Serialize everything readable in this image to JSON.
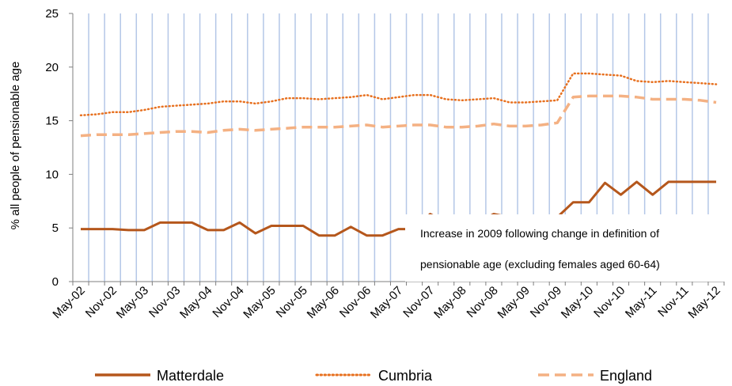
{
  "chart_data": {
    "type": "line",
    "title": "",
    "xlabel": "",
    "ylabel": "% all people of pensionable age",
    "ylim": [
      0,
      25
    ],
    "yticks": [
      0,
      5,
      10,
      15,
      20,
      25
    ],
    "x": [
      "May-02",
      "Aug-02",
      "Nov-02",
      "Feb-03",
      "May-03",
      "Aug-03",
      "Nov-03",
      "Feb-04",
      "May-04",
      "Aug-04",
      "Nov-04",
      "Feb-05",
      "May-05",
      "Aug-05",
      "Nov-05",
      "Feb-06",
      "May-06",
      "Aug-06",
      "Nov-06",
      "Feb-07",
      "May-07",
      "Aug-07",
      "Nov-07",
      "Feb-08",
      "May-08",
      "Aug-08",
      "Nov-08",
      "Feb-09",
      "May-09",
      "Aug-09",
      "Nov-09",
      "Feb-10",
      "May-10",
      "Aug-10",
      "Nov-10",
      "Feb-11",
      "May-11",
      "Aug-11",
      "Nov-11",
      "Feb-12",
      "May-12"
    ],
    "x_tick_labels": [
      "May-02",
      "Nov-02",
      "May-03",
      "Nov-03",
      "May-04",
      "Nov-04",
      "May-05",
      "Nov-05",
      "May-06",
      "Nov-06",
      "May-07",
      "Nov-07",
      "May-08",
      "Nov-08",
      "May-09",
      "Nov-09",
      "May-10",
      "Nov-10",
      "May-11",
      "Nov-11",
      "May-12"
    ],
    "grid": "vertical",
    "legend_position": "bottom",
    "series": [
      {
        "name": "Matterdale",
        "color": "#b5571c",
        "style": "solid",
        "values": [
          4.9,
          4.9,
          4.9,
          4.8,
          4.8,
          5.5,
          5.5,
          5.5,
          4.8,
          4.8,
          5.5,
          4.5,
          5.2,
          5.2,
          5.2,
          4.3,
          4.3,
          5.1,
          4.3,
          4.3,
          4.9,
          4.9,
          6.3,
          5.5,
          5.5,
          5.5,
          6.3,
          6.0,
          5.8,
          5.5,
          6.0,
          7.4,
          7.4,
          9.2,
          8.1,
          9.3,
          8.1,
          9.3,
          9.3,
          9.3,
          9.3
        ]
      },
      {
        "name": "Cumbria",
        "color": "#e7701f",
        "style": "dotted",
        "values": [
          15.5,
          15.6,
          15.8,
          15.8,
          16.0,
          16.3,
          16.4,
          16.5,
          16.6,
          16.8,
          16.8,
          16.6,
          16.8,
          17.1,
          17.1,
          17.0,
          17.1,
          17.2,
          17.4,
          17.0,
          17.2,
          17.4,
          17.4,
          17.0,
          16.9,
          17.0,
          17.1,
          16.7,
          16.7,
          16.8,
          16.9,
          19.4,
          19.4,
          19.3,
          19.2,
          18.7,
          18.6,
          18.7,
          18.6,
          18.5,
          18.4
        ]
      },
      {
        "name": "England",
        "color": "#f4b183",
        "style": "dashed",
        "values": [
          13.6,
          13.7,
          13.7,
          13.7,
          13.8,
          13.9,
          14.0,
          14.0,
          13.9,
          14.1,
          14.2,
          14.1,
          14.2,
          14.3,
          14.4,
          14.4,
          14.4,
          14.5,
          14.6,
          14.4,
          14.5,
          14.6,
          14.6,
          14.4,
          14.4,
          14.5,
          14.7,
          14.5,
          14.5,
          14.6,
          14.8,
          17.2,
          17.3,
          17.3,
          17.3,
          17.2,
          17.0,
          17.0,
          17.0,
          16.9,
          16.7
        ]
      }
    ],
    "annotation": {
      "lines": [
        "Increase in 2009 following change in definition of",
        "pensionable age (excluding females aged 60-64)"
      ]
    }
  }
}
